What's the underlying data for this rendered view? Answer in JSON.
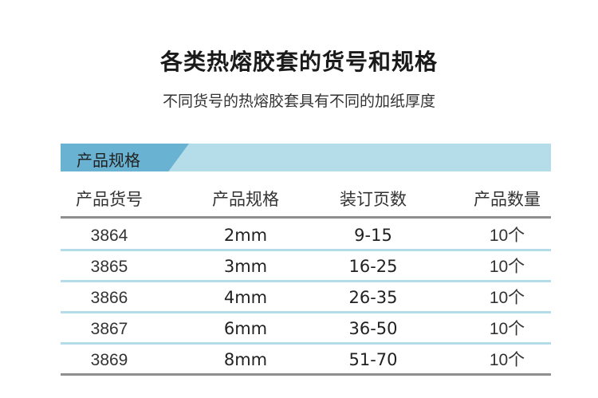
{
  "title": "各类热熔胶套的货号和规格",
  "subtitle": "不同货号的热熔胶套具有不同的加纸厚度",
  "section_label": "产品规格",
  "colors": {
    "band_light": "#b4dce9",
    "band_dark": "#6ab2d1",
    "rule_grey": "#8f8f8f"
  },
  "table": {
    "headers": [
      "产品货号",
      "产品规格",
      "装订页数",
      "产品数量"
    ],
    "rows": [
      [
        "3864",
        "2mm",
        "9-15",
        "10个"
      ],
      [
        "3865",
        "3mm",
        "16-25",
        "10个"
      ],
      [
        "3866",
        "4mm",
        "26-35",
        "10个"
      ],
      [
        "3867",
        "6mm",
        "36-50",
        "10个"
      ],
      [
        "3869",
        "8mm",
        "51-70",
        "10个"
      ]
    ]
  }
}
